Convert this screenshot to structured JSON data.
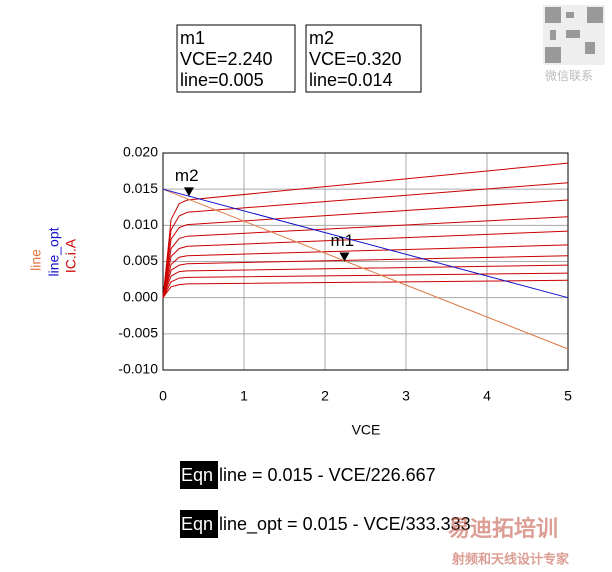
{
  "chart_data": {
    "type": "line",
    "xlabel": "VCE",
    "x": [
      0,
      0.05,
      0.1,
      0.2,
      0.3,
      5
    ],
    "xlim": [
      0,
      5
    ],
    "xticks": [
      0,
      1,
      2,
      3,
      4,
      5
    ],
    "ylim": [
      -0.01,
      0.02
    ],
    "yticks": [
      {
        "value": -0.01,
        "label": "-0.010"
      },
      {
        "value": -0.005,
        "label": "-0.005"
      },
      {
        "value": 0,
        "label": "0.000"
      },
      {
        "value": 0.005,
        "label": "0.005"
      },
      {
        "value": 0.01,
        "label": "0.010"
      },
      {
        "value": 0.015,
        "label": "0.015"
      },
      {
        "value": 0.02,
        "label": "0.020"
      }
    ],
    "grid": true,
    "series": [
      {
        "name": "IC.i.A",
        "color": "#cc0000",
        "curves": [
          [
            0,
            0.0054,
            0.0108,
            0.013,
            0.0135,
            0.0186
          ],
          [
            0,
            0.0047,
            0.0094,
            0.0113,
            0.0118,
            0.0159
          ],
          [
            0,
            0.004,
            0.0081,
            0.0097,
            0.0101,
            0.0135
          ],
          [
            0,
            0.0034,
            0.0068,
            0.0082,
            0.0085,
            0.0112
          ],
          [
            0,
            0.0028,
            0.0057,
            0.0068,
            0.0071,
            0.0092
          ],
          [
            0,
            0.0023,
            0.0046,
            0.0056,
            0.0058,
            0.0073
          ],
          [
            0,
            0.0019,
            0.0038,
            0.0045,
            0.0047,
            0.0058
          ],
          [
            0,
            0.0015,
            0.003,
            0.0036,
            0.0037,
            0.0045
          ],
          [
            0,
            0.0011,
            0.0022,
            0.0027,
            0.0028,
            0.0034
          ],
          [
            0,
            0.0008,
            0.0015,
            0.0018,
            0.0019,
            0.0024
          ]
        ]
      },
      {
        "name": "line",
        "color": "#e07840",
        "x": [
          0,
          5
        ],
        "values": [
          0.015,
          -0.0071
        ]
      },
      {
        "name": "line_opt",
        "color": "#1010cc",
        "x": [
          0,
          5
        ],
        "values": [
          0.015,
          0
        ]
      }
    ],
    "markers": [
      {
        "label": "m1",
        "lines": [
          "VCE=2.240",
          "line=0.005"
        ],
        "x": 2.24,
        "y": 0.005
      },
      {
        "label": "m2",
        "lines": [
          "VCE=0.320",
          "line=0.014"
        ],
        "x": 0.32,
        "y": 0.014
      }
    ]
  },
  "equations": [
    {
      "tag": "Eqn",
      "text": "line = 0.015 - VCE/226.667"
    },
    {
      "tag": "Eqn",
      "text": "line_opt = 0.015 - VCE/333.333"
    }
  ],
  "watermark": {
    "contact": "微信联系",
    "brand": "易迪拓培训",
    "slogan": "射频和天线设计专家"
  }
}
